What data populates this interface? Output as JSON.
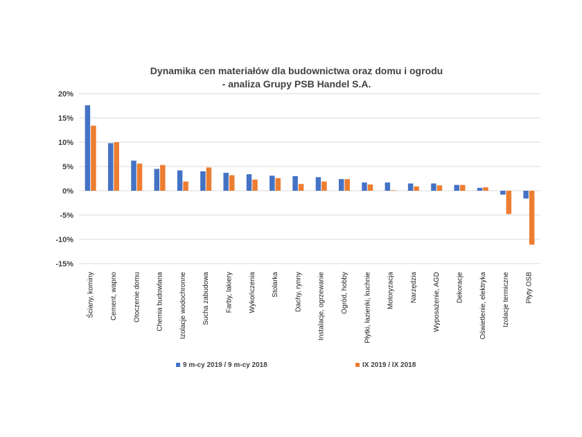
{
  "chart_data": {
    "type": "bar",
    "title": [
      "Dynamika cen materiałów dla budownictwa oraz domu i ogrodu",
      "- analiza Grupy PSB Handel S.A."
    ],
    "categories": [
      "Ściany, kominy",
      "Cement, wapno",
      "Otoczenie domu",
      "Chemia budowlana",
      "Izolacje wodochronne",
      "Sucha zabudowa",
      "Farby, lakiery",
      "Wykończenia",
      "Stolarka",
      "Dachy, rynny",
      "Instalacje, ogrzewanie",
      "Ogród, hobby",
      "Płytki, łazienki, kuchnie",
      "Motoryzacja",
      "Narzędzia",
      "Wyposażenie, AGD",
      "Dekoracje",
      "Oświetlenie, elektryka",
      "Izolacje termiczne",
      "Płyty OSB"
    ],
    "series": [
      {
        "name": "9 m-cy 2019 / 9 m-cy 2018",
        "color": "#4472c4",
        "values": [
          17.6,
          9.8,
          6.2,
          4.5,
          4.2,
          4.0,
          3.7,
          3.4,
          3.1,
          3.0,
          2.8,
          2.4,
          1.7,
          1.7,
          1.5,
          1.5,
          1.2,
          0.6,
          -0.8,
          -1.6
        ]
      },
      {
        "name": "IX 2019 / IX 2018",
        "color": "#ed7d31",
        "values": [
          13.4,
          10.0,
          5.6,
          5.3,
          1.9,
          4.8,
          3.2,
          2.3,
          2.6,
          1.4,
          1.9,
          2.4,
          1.3,
          0.1,
          0.9,
          1.1,
          1.2,
          0.7,
          -4.8,
          -11.1
        ]
      }
    ],
    "yticks": [
      20,
      15,
      10,
      5,
      0,
      -5,
      -10,
      -15
    ],
    "ytick_labels": [
      "20%",
      "15%",
      "10%",
      "5%",
      "0%",
      "-5%",
      "-10%",
      "-15%"
    ],
    "ylim": [
      -15,
      20
    ],
    "grid": true,
    "legend": "bottom",
    "xlabel": "",
    "ylabel": ""
  }
}
